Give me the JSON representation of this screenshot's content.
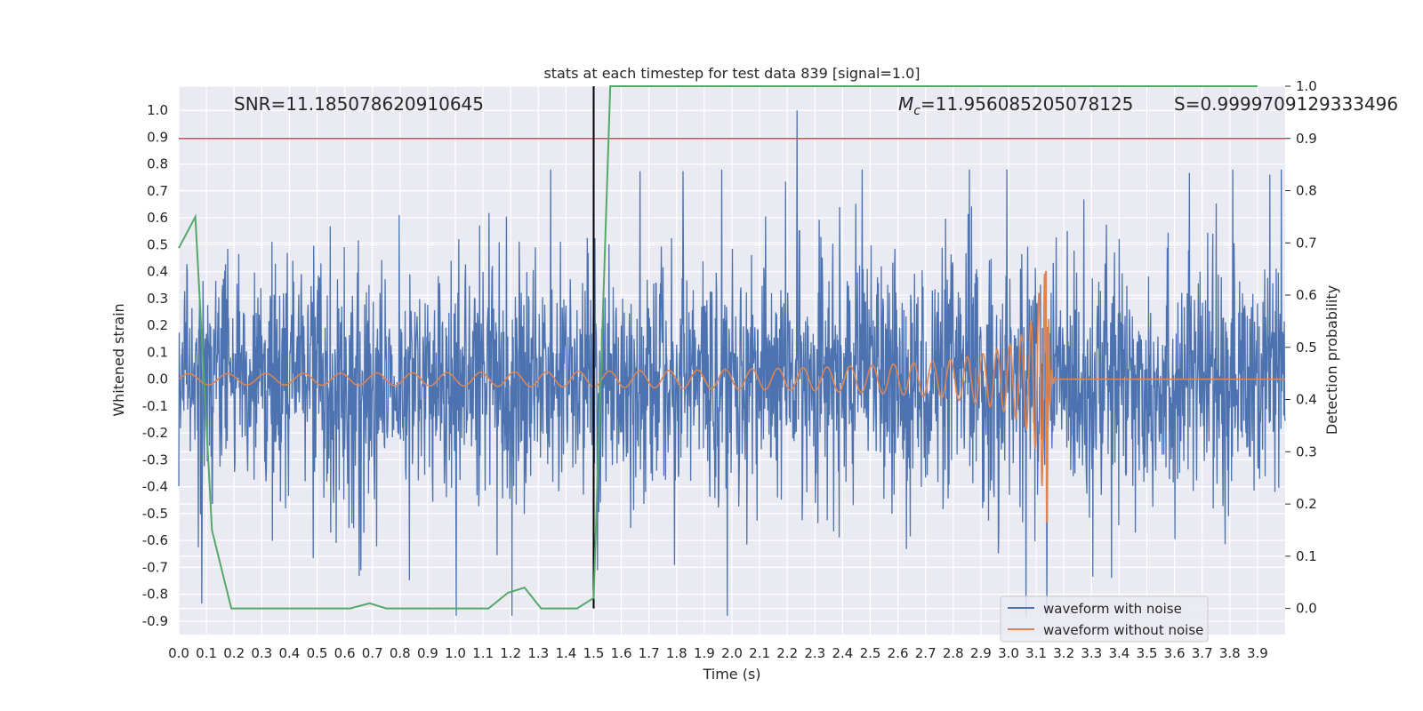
{
  "chart_data": {
    "type": "line",
    "title": "stats at each timestep for test data 839 [signal=1.0]",
    "xlabel": "Time (s)",
    "ylabel": "Whitened strain",
    "y2label": "Detection probability",
    "xlim": [
      0.0,
      4.0
    ],
    "ylim": [
      -0.95,
      1.09
    ],
    "y2lim": [
      -0.05,
      1.0
    ],
    "x_ticks": [
      "0.0",
      "0.1",
      "0.2",
      "0.3",
      "0.4",
      "0.5",
      "0.6",
      "0.7",
      "0.8",
      "0.9",
      "1.0",
      "1.1",
      "1.2",
      "1.3",
      "1.4",
      "1.5",
      "1.6",
      "1.7",
      "1.8",
      "1.9",
      "2.0",
      "2.1",
      "2.2",
      "2.3",
      "2.4",
      "2.5",
      "2.6",
      "2.7",
      "2.8",
      "2.9",
      "3.0",
      "3.1",
      "3.2",
      "3.3",
      "3.4",
      "3.5",
      "3.6",
      "3.7",
      "3.8",
      "3.9"
    ],
    "y_ticks": [
      "1.0",
      "0.9",
      "0.8",
      "0.7",
      "0.6",
      "0.5",
      "0.4",
      "0.3",
      "0.2",
      "0.1",
      "0.0",
      "-0.1",
      "-0.2",
      "-0.3",
      "-0.4",
      "-0.5",
      "-0.6",
      "-0.7",
      "-0.8",
      "-0.9"
    ],
    "y2_ticks": [
      "1.0",
      "0.9",
      "0.8",
      "0.7",
      "0.6",
      "0.5",
      "0.4",
      "0.3",
      "0.2",
      "0.1",
      "0.0"
    ],
    "grid": true,
    "legend_position": "lower-right",
    "series": [
      {
        "name": "waveform with noise",
        "color": "#4c72b0",
        "kind": "noisy-strain",
        "typical_envelope": [
          -0.6,
          0.6
        ],
        "max": 1.0,
        "min": -0.88
      },
      {
        "name": "waveform without noise",
        "color": "#dd8452",
        "kind": "chirp",
        "merger_time": 3.14,
        "peak": 0.4,
        "trough": -0.53,
        "early_amplitude": 0.02
      }
    ],
    "detection_probability": {
      "color": "#55a868",
      "x": [
        0.0,
        0.06,
        0.12,
        0.19,
        0.25,
        0.31,
        0.37,
        0.44,
        0.5,
        0.56,
        0.62,
        0.69,
        0.75,
        0.81,
        0.87,
        0.94,
        1.0,
        1.06,
        1.12,
        1.19,
        1.25,
        1.31,
        1.37,
        1.44,
        1.5,
        1.56,
        1.62,
        1.69,
        3.9
      ],
      "values": [
        0.69,
        0.75,
        0.15,
        0.0,
        0.0,
        0.0,
        0.0,
        0.0,
        0.0,
        0.0,
        0.0,
        0.01,
        0.0,
        0.0,
        0.0,
        0.0,
        0.0,
        0.0,
        0.0,
        0.03,
        0.04,
        0.0,
        0.0,
        0.0,
        0.02,
        1.0,
        1.0,
        1.0,
        1.0
      ]
    },
    "threshold_line": {
      "value": 0.9,
      "axis": "right",
      "color": "#c44e52"
    },
    "event_line": {
      "x": 1.5,
      "color": "#000000"
    },
    "annotations": {
      "snr": "SNR=11.185078620910645",
      "mc_symbol": "M",
      "mc_subscript": "c",
      "mc_value": "=11.956085205078125",
      "s": "S=0.9999709129333496"
    }
  }
}
